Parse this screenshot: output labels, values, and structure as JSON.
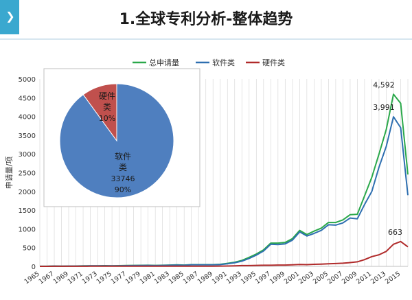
{
  "page": {
    "title": "1.全球专利分析-整体趋势",
    "icon": "chevron-right-icon"
  },
  "colors": {
    "accent": "#3aa8cf",
    "total": "#2aa84a",
    "software": "#2e6fb0",
    "hardware": "#b02a2a",
    "pie_software": "#4f7fbf",
    "pie_hardware": "#c0504d"
  },
  "chart_data": [
    {
      "type": "line",
      "ylabel": "申请量/项",
      "xlabel": "",
      "ylim": [
        0,
        5000
      ],
      "yticks": [
        0,
        500,
        1000,
        1500,
        2000,
        2500,
        3000,
        3500,
        4000,
        4500,
        5000
      ],
      "grid": true,
      "legend": "top",
      "x": [
        1965,
        1966,
        1967,
        1968,
        1969,
        1970,
        1971,
        1972,
        1973,
        1974,
        1975,
        1976,
        1977,
        1978,
        1979,
        1980,
        1981,
        1982,
        1983,
        1984,
        1985,
        1986,
        1987,
        1988,
        1989,
        1990,
        1991,
        1992,
        1993,
        1994,
        1995,
        1996,
        1997,
        1998,
        1999,
        2000,
        2001,
        2002,
        2003,
        2004,
        2005,
        2006,
        2007,
        2008,
        2009,
        2010,
        2011,
        2012,
        2013,
        2014,
        2015,
        2016
      ],
      "xtick_labels": [
        "1965",
        "1967",
        "1969",
        "1971",
        "1973",
        "1975",
        "1977",
        "1979",
        "1981",
        "1983",
        "1985",
        "1987",
        "1989",
        "1991",
        "1993",
        "1995",
        "1997",
        "1999",
        "2001",
        "2003",
        "2005",
        "2007",
        "2009",
        "2011",
        "2013",
        "2015"
      ],
      "series": [
        {
          "name": "总申请量",
          "values": [
            2,
            2,
            10,
            5,
            8,
            10,
            12,
            15,
            15,
            18,
            15,
            18,
            22,
            25,
            28,
            30,
            25,
            30,
            35,
            40,
            35,
            45,
            45,
            45,
            45,
            55,
            80,
            110,
            160,
            240,
            330,
            440,
            620,
            620,
            640,
            740,
            960,
            850,
            940,
            1020,
            1170,
            1170,
            1240,
            1380,
            1390,
            1880,
            2380,
            3000,
            3650,
            4592,
            4350,
            2450
          ]
        },
        {
          "name": "软件类",
          "values": [
            2,
            2,
            8,
            4,
            7,
            8,
            10,
            12,
            12,
            15,
            12,
            15,
            18,
            20,
            22,
            25,
            20,
            25,
            30,
            35,
            30,
            40,
            40,
            40,
            40,
            48,
            70,
            95,
            140,
            210,
            300,
            410,
            590,
            580,
            600,
            700,
            920,
            810,
            880,
            960,
            1110,
            1100,
            1160,
            1290,
            1270,
            1650,
            2000,
            2650,
            3200,
            3991,
            3700,
            1900
          ]
        },
        {
          "name": "硬件类",
          "values": [
            0,
            0,
            2,
            1,
            1,
            2,
            2,
            3,
            3,
            3,
            3,
            3,
            4,
            5,
            6,
            5,
            5,
            5,
            5,
            5,
            5,
            5,
            5,
            5,
            5,
            7,
            10,
            15,
            20,
            20,
            25,
            30,
            30,
            35,
            35,
            40,
            50,
            45,
            55,
            60,
            70,
            75,
            85,
            100,
            120,
            180,
            260,
            310,
            400,
            590,
            663,
            520
          ]
        }
      ],
      "annotations": [
        {
          "text": "4,592",
          "x": 2014,
          "y": 4592
        },
        {
          "text": "3,991",
          "x": 2014,
          "y": 3991
        },
        {
          "text": "663",
          "x": 2015,
          "y": 663
        }
      ]
    },
    {
      "type": "pie",
      "slices": [
        {
          "label": "软件类",
          "value": 33746,
          "percent": "90%",
          "line1": "软件",
          "line2": "类",
          "value_text": "33746"
        },
        {
          "label": "硬件类",
          "value": 3750,
          "percent": "10%",
          "line1": "硬件",
          "line2": "类"
        }
      ]
    }
  ]
}
